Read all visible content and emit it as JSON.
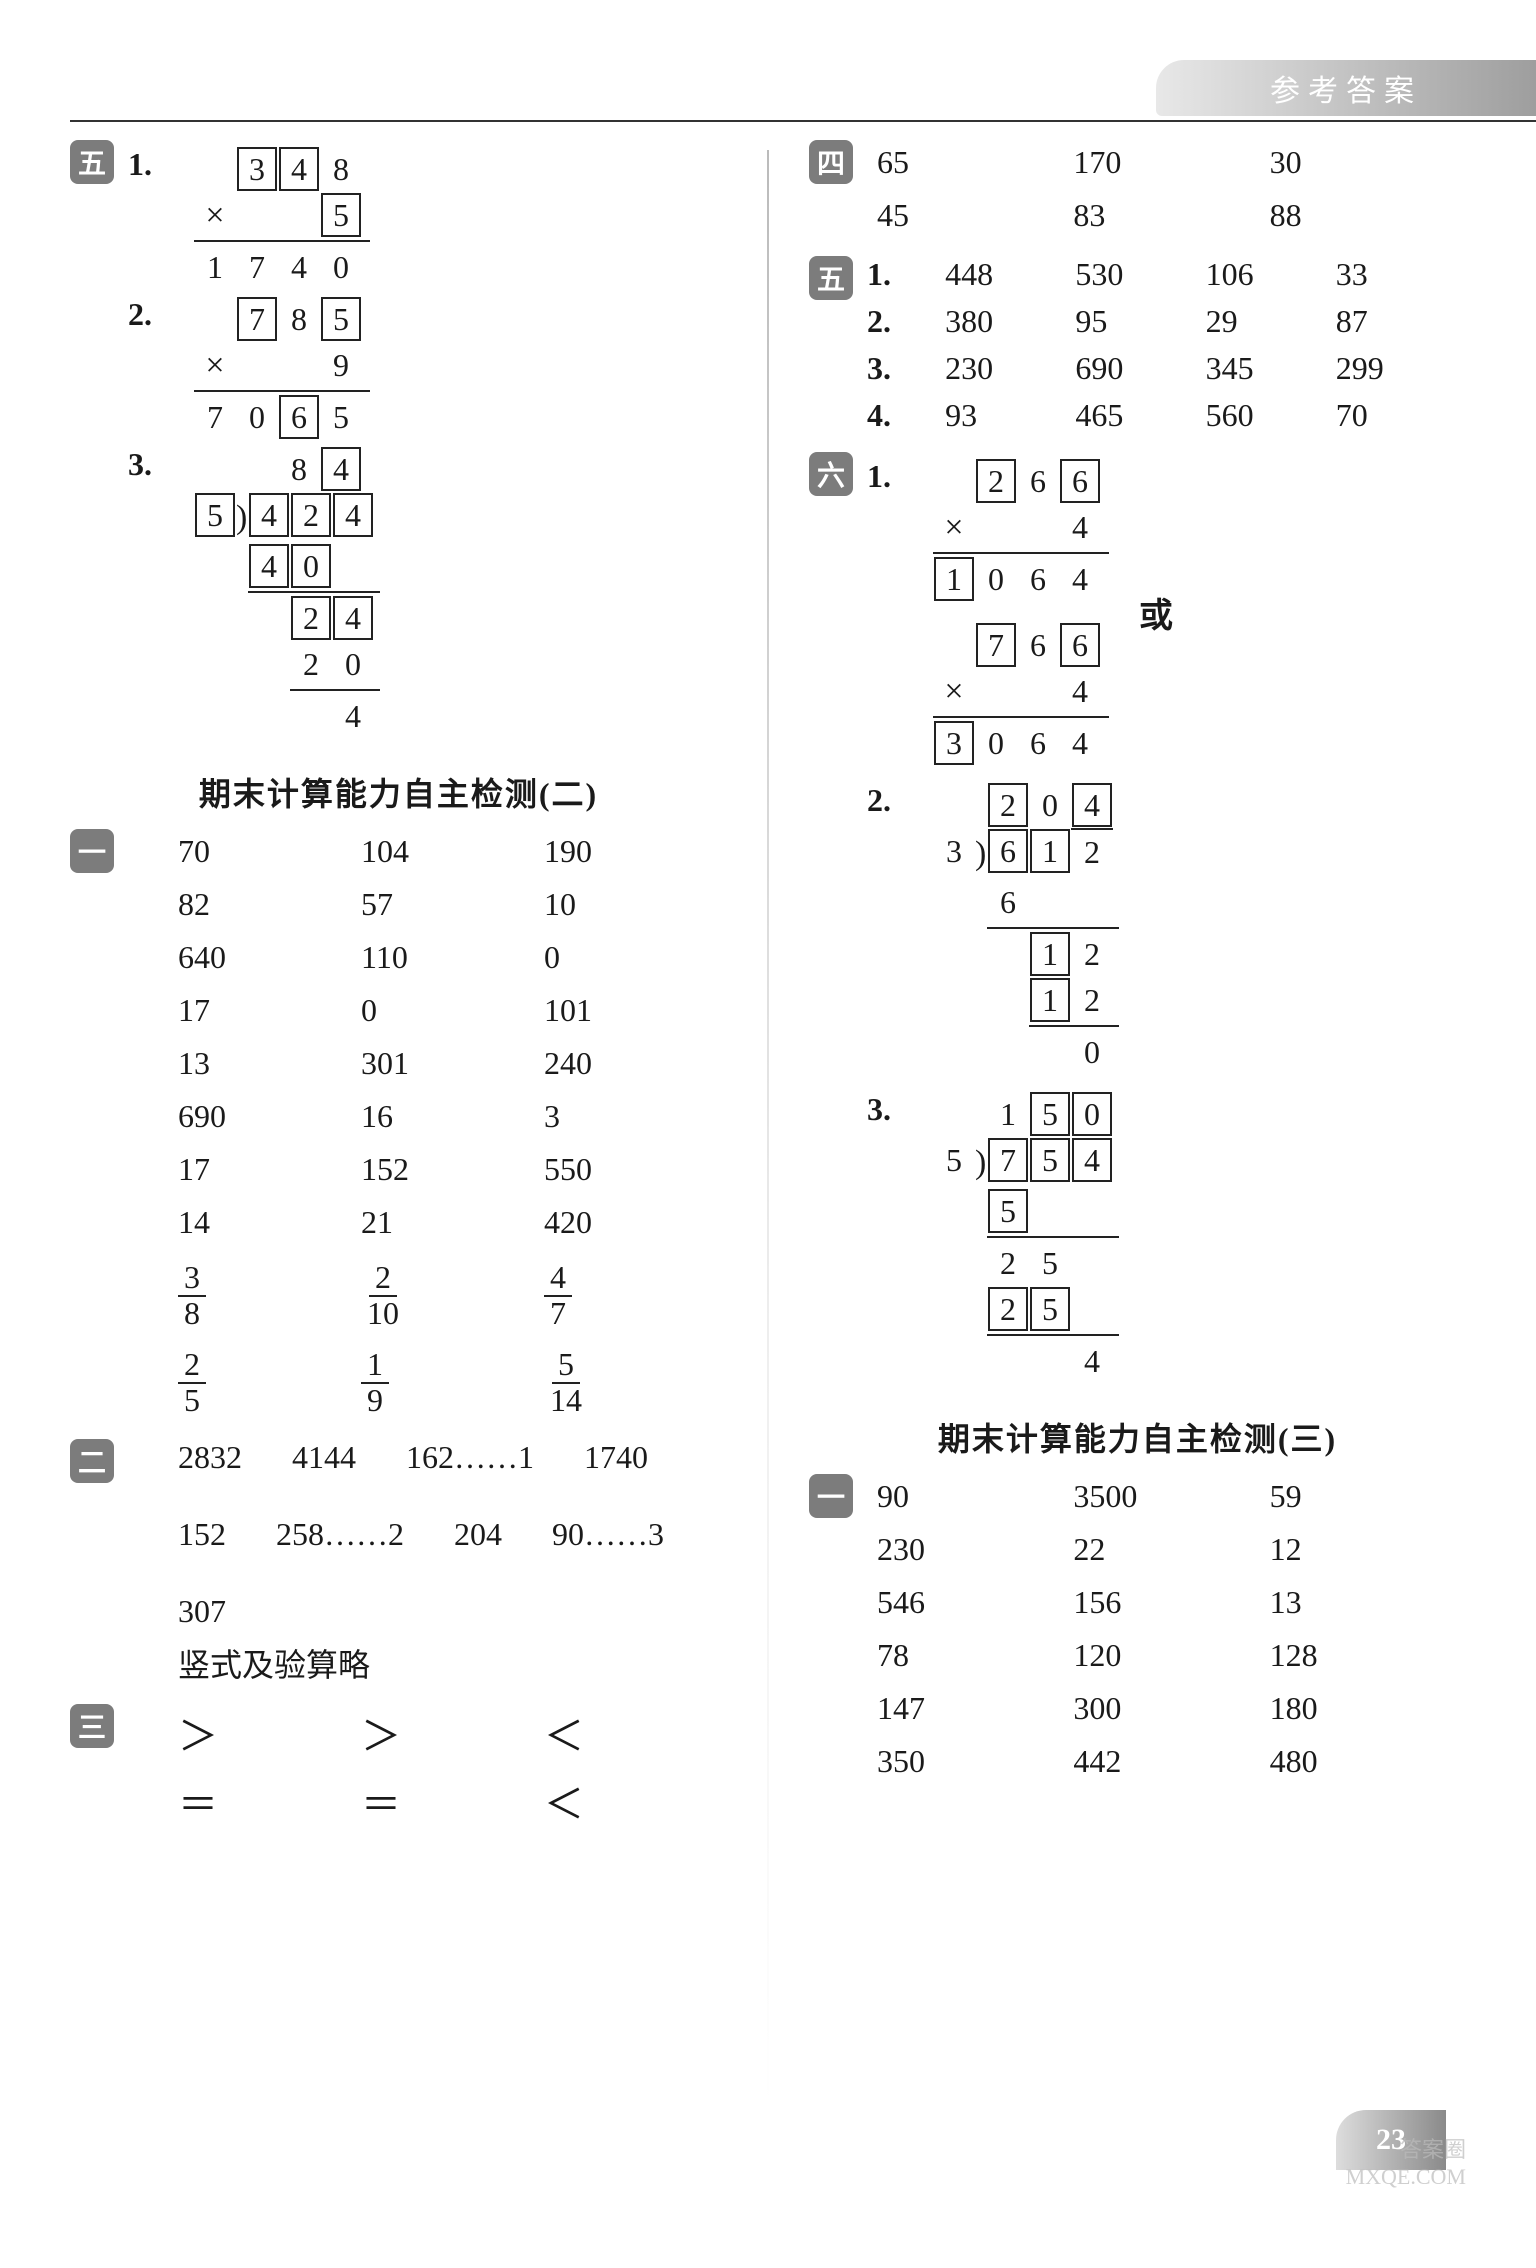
{
  "header": {
    "tab_label": "参考答案",
    "page_number": "23"
  },
  "watermark": {
    "line1": "答案圈",
    "line2": "MXQE.COM"
  },
  "left": {
    "section5": {
      "badge": "五",
      "problems": {
        "p1": {
          "label": "1.",
          "row1": [
            "3",
            "4",
            "8"
          ],
          "row1_boxed": [
            true,
            true,
            false
          ],
          "op": "×",
          "row2": [
            "5"
          ],
          "row2_boxed": [
            true
          ],
          "result": [
            "1",
            "7",
            "4",
            "0"
          ]
        },
        "p2": {
          "label": "2.",
          "row1": [
            "7",
            "8",
            "5"
          ],
          "row1_boxed": [
            true,
            false,
            true
          ],
          "op": "×",
          "row2": [
            "9"
          ],
          "row2_boxed": [
            false
          ],
          "result": [
            "7",
            "0",
            "6",
            "5"
          ],
          "result_boxed": [
            false,
            false,
            true,
            false
          ]
        },
        "p3": {
          "label": "3.",
          "quotient": [
            "8",
            "4"
          ],
          "quotient_boxed": [
            false,
            true
          ],
          "divisor": "5",
          "divisor_boxed": true,
          "dividend": [
            "4",
            "2",
            "4"
          ],
          "dividend_boxed": [
            true,
            true,
            true
          ],
          "step1": [
            "4",
            "0"
          ],
          "step1_boxed": [
            true,
            true
          ],
          "step2": [
            "2",
            "4"
          ],
          "step2_boxed": [
            true,
            true
          ],
          "step3": [
            "2",
            "0"
          ],
          "step3_boxed": [
            false,
            false
          ],
          "remainder": "4"
        }
      }
    },
    "heading2": "期末计算能力自主检测(二)",
    "section1": {
      "badge": "一",
      "grid": [
        [
          "70",
          "104",
          "190"
        ],
        [
          "82",
          "57",
          "10"
        ],
        [
          "640",
          "110",
          "0"
        ],
        [
          "17",
          "0",
          "101"
        ],
        [
          "13",
          "301",
          "240"
        ],
        [
          "690",
          "16",
          "3"
        ],
        [
          "17",
          "152",
          "550"
        ],
        [
          "14",
          "21",
          "420"
        ]
      ],
      "frac_rows": [
        [
          {
            "n": "3",
            "d": "8"
          },
          {
            "n": "2",
            "d": "10"
          },
          {
            "n": "4",
            "d": "7"
          }
        ],
        [
          {
            "n": "2",
            "d": "5"
          },
          {
            "n": "1",
            "d": "9"
          },
          {
            "n": "5",
            "d": "14"
          }
        ]
      ]
    },
    "section2": {
      "badge": "二",
      "items": [
        "2832",
        "4144",
        "162……1",
        "1740",
        "152",
        "258……2",
        "204",
        "90……3",
        "307"
      ],
      "note": "竖式及验算略"
    },
    "section3": {
      "badge": "三",
      "rows": [
        [
          "＞",
          "＞",
          "＜"
        ],
        [
          "＝",
          "＝",
          "＜"
        ]
      ]
    }
  },
  "right": {
    "section4": {
      "badge": "四",
      "rows": [
        [
          "65",
          "170",
          "30"
        ],
        [
          "45",
          "83",
          "88"
        ]
      ]
    },
    "section5": {
      "badge": "五",
      "rows": [
        {
          "label": "1.",
          "vals": [
            "448",
            "530",
            "106",
            "33"
          ]
        },
        {
          "label": "2.",
          "vals": [
            "380",
            "95",
            "29",
            "87"
          ]
        },
        {
          "label": "3.",
          "vals": [
            "230",
            "690",
            "345",
            "299"
          ]
        },
        {
          "label": "4.",
          "vals": [
            "93",
            "465",
            "560",
            "70"
          ]
        }
      ]
    },
    "section6": {
      "badge": "六",
      "or_label": "或",
      "p1a": {
        "row1": [
          "2",
          "6",
          "6"
        ],
        "row1_boxed": [
          true,
          false,
          true
        ],
        "op": "×",
        "row2": [
          "4"
        ],
        "result": [
          "1",
          "0",
          "6",
          "4"
        ],
        "result_boxed": [
          true,
          false,
          false,
          false
        ]
      },
      "p1b": {
        "row1": [
          "7",
          "6",
          "6"
        ],
        "row1_boxed": [
          true,
          false,
          true
        ],
        "op": "×",
        "row2": [
          "4"
        ],
        "result": [
          "3",
          "0",
          "6",
          "4"
        ],
        "result_boxed": [
          true,
          false,
          false,
          false
        ]
      },
      "p2": {
        "label": "2.",
        "quotient": [
          "2",
          "0",
          "4"
        ],
        "quotient_boxed": [
          true,
          false,
          true
        ],
        "divisor": "3",
        "dividend": [
          "6",
          "1",
          "2"
        ],
        "dividend_boxed": [
          true,
          true,
          false
        ],
        "step1": [
          "6"
        ],
        "step2": [
          "1",
          "2"
        ],
        "step2_boxed": [
          true,
          false
        ],
        "step3": [
          "1",
          "2"
        ],
        "step3_boxed": [
          true,
          false
        ],
        "remainder": "0"
      },
      "p3": {
        "label": "3.",
        "quotient": [
          "1",
          "5",
          "0"
        ],
        "quotient_boxed": [
          false,
          true,
          true
        ],
        "divisor": "5",
        "dividend": [
          "7",
          "5",
          "4"
        ],
        "dividend_boxed": [
          true,
          true,
          true
        ],
        "step1": [
          "5"
        ],
        "step1_boxed": [
          true
        ],
        "step2": [
          "2",
          "5"
        ],
        "step3": [
          "2",
          "5"
        ],
        "step3_boxed": [
          true,
          true
        ],
        "remainder": "4"
      }
    },
    "heading3": "期末计算能力自主检测(三)",
    "section1b": {
      "badge": "一",
      "rows": [
        [
          "90",
          "3500",
          "59"
        ],
        [
          "230",
          "22",
          "12"
        ],
        [
          "546",
          "156",
          "13"
        ],
        [
          "78",
          "120",
          "128"
        ],
        [
          "147",
          "300",
          "180"
        ],
        [
          "350",
          "442",
          "480"
        ]
      ]
    }
  }
}
